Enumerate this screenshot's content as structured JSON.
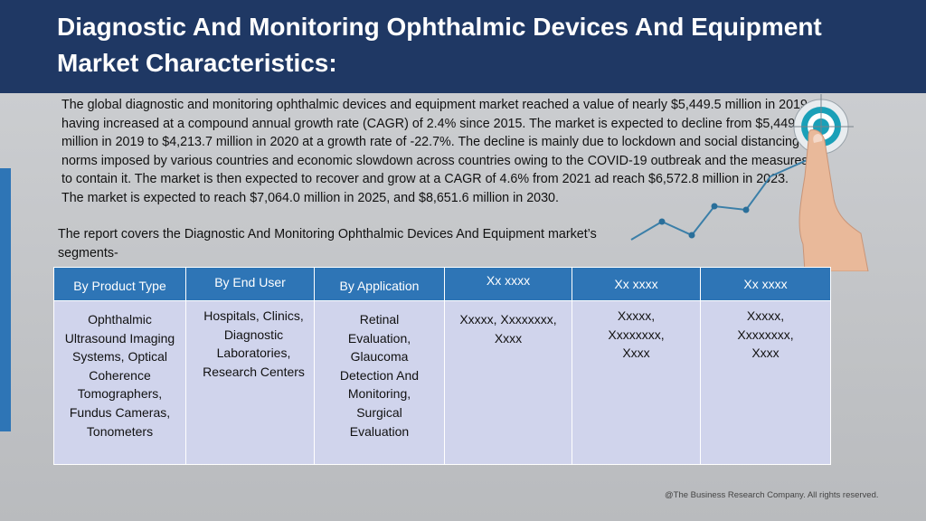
{
  "title": "Diagnostic And Monitoring Ophthalmic Devices And Equipment Market Characteristics:",
  "paragraph": "The global diagnostic and monitoring ophthalmic devices and equipment market reached a value of nearly $5,449.5 million in 2019, having increased at a compound annual growth rate (CAGR) of 2.4% since 2015. The market is expected to decline from $5,449.5 million in 2019 to $4,213.7 million in 2020 at a growth rate of -22.7%. The decline is mainly due to lockdown and social distancing norms imposed by various countries and economic slowdown across countries owing to the COVID-19 outbreak and the measures to contain it. The market is then expected to recover and grow at a CAGR of 4.6% from 2021 ad reach $6,572.8 million in 2023.  The market is expected to reach $7,064.0 million in 2025, and $8,651.6 million in 2030.",
  "intro": "The report covers the Diagnostic And Monitoring Ophthalmic Devices And Equipment market’s segments-",
  "table": {
    "headers": [
      "By Product Type",
      "By End User",
      "By Application",
      "Xx xxxx",
      "Xx xxxx",
      "Xx xxxx"
    ],
    "cells": [
      "Ophthalmic Ultrasound Imaging Systems, Optical Coherence Tomographers, Fundus Cameras, Tonometers",
      "Hospitals, Clinics, Diagnostic Laboratories, Research Centers",
      "Retinal Evaluation, Glaucoma Detection And Monitoring, Surgical Evaluation",
      "Xxxxx, Xxxxxxxx, Xxxx",
      "Xxxxx, Xxxxxxxx, Xxxx",
      "Xxxxx, Xxxxxxxx, Xxxx"
    ]
  },
  "footer": "@The Business Research Company. All rights reserved.",
  "colors": {
    "header_bg": "#1f3864",
    "table_header_bg": "#2e75b6",
    "table_cell_bg": "#d0d4ec",
    "accent_bar": "#2e75b6",
    "target_teal": "#1aa0b8"
  },
  "icons": [
    "target-icon",
    "pointing-finger-icon",
    "trend-line-icon"
  ]
}
